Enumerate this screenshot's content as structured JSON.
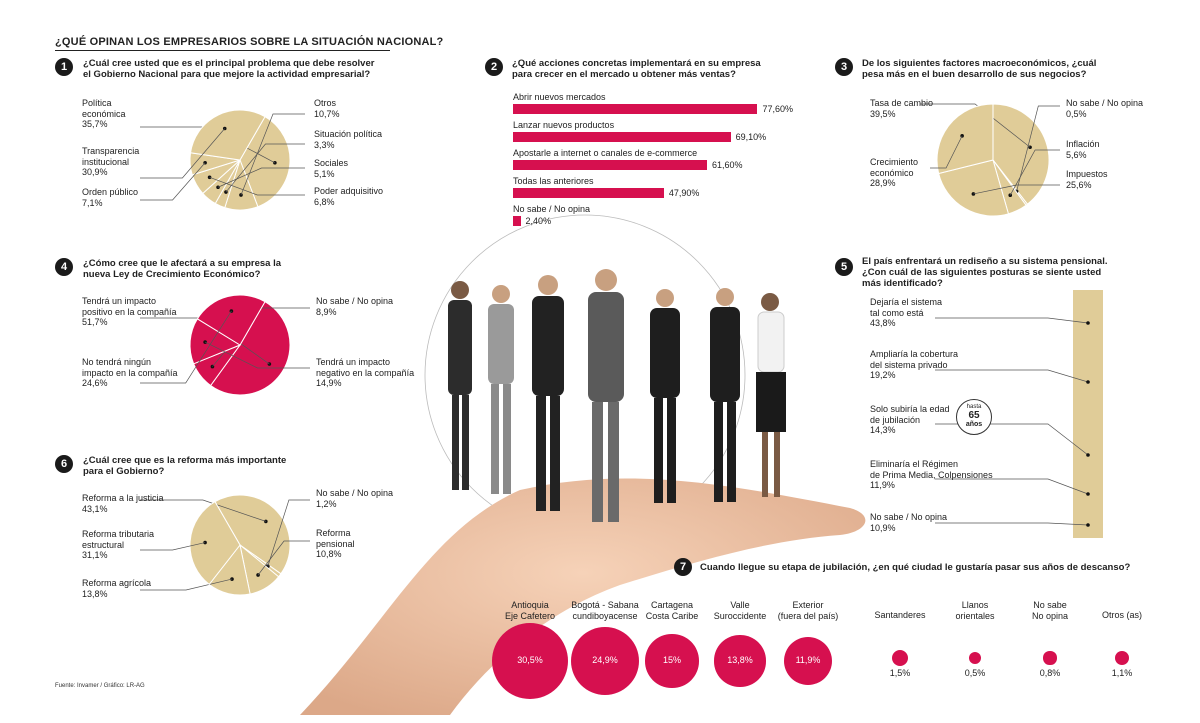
{
  "header": {
    "title": "¿QUÉ OPINAN LOS EMPRESARIOS SOBRE LA SITUACIÓN NACIONAL?"
  },
  "source": "Fuente: Invamer / Gráfico: LR-AG",
  "colors": {
    "tan": "#e0cc98",
    "magenta": "#d6104f",
    "dark": "#1a1a1a"
  },
  "chart_data": [
    {
      "id": "q1",
      "type": "pie",
      "number": "1",
      "title": "¿Cuál cree usted que es el principal problema que debe resolver el Gobierno Nacional para que mejore la actividad empresarial?",
      "title_lines": [
        "¿Cuál cree usted que es el principal problema que debe resolver",
        "el Gobierno Nacional para que mejore la actividad empresarial?"
      ],
      "slices": [
        {
          "label": "Política económica",
          "label_lines": [
            "Política",
            "económica"
          ],
          "value_text": "35,7%",
          "value": 35.7
        },
        {
          "label": "Otros",
          "label_lines": [
            "Otros"
          ],
          "value_text": "10,7%",
          "value": 10.7
        },
        {
          "label": "Situación política",
          "label_lines": [
            "Situación política"
          ],
          "value_text": "3,3%",
          "value": 3.3
        },
        {
          "label": "Sociales",
          "label_lines": [
            "Sociales"
          ],
          "value_text": "5,1%",
          "value": 5.1
        },
        {
          "label": "Poder adquisitivo",
          "label_lines": [
            "Poder adquisitivo"
          ],
          "value_text": "6,8%",
          "value": 6.8
        },
        {
          "label": "Orden público",
          "label_lines": [
            "Orden público"
          ],
          "value_text": "7,1%",
          "value": 7.1
        },
        {
          "label": "Transparencia institucional",
          "label_lines": [
            "Transparencia",
            "institucional"
          ],
          "value_text": "30,9%",
          "value": 30.9
        }
      ]
    },
    {
      "id": "q2",
      "type": "bar",
      "number": "2",
      "title": "¿Qué acciones concretas implementará en su empresa para crecer en el mercado u obtener más ventas?",
      "title_lines": [
        "¿Qué acciones concretas implementará en su empresa",
        "para crecer en el mercado u obtener más ventas?"
      ],
      "categories": [
        "Abrir nuevos mercados",
        "Lanzar nuevos productos",
        "Apostarle a internet o canales de e-commerce",
        "Todas las anteriores",
        "No sabe / No opina"
      ],
      "values": [
        77.6,
        69.1,
        61.6,
        47.9,
        2.4
      ],
      "value_texts": [
        "77,60%",
        "69,10%",
        "61,60%",
        "47,90%",
        "2,40%"
      ],
      "xlim": [
        0,
        100
      ]
    },
    {
      "id": "q3",
      "type": "pie",
      "number": "3",
      "title": "De los siguientes factores macroeconómicos, ¿cuál pesa más en el buen desarrollo de sus negocios?",
      "title_lines": [
        "De los siguientes factores macroeconómicos, ¿cuál",
        "pesa más en el buen desarrollo de sus negocios?"
      ],
      "slices": [
        {
          "label": "Tasa de cambio",
          "label_lines": [
            "Tasa de cambio"
          ],
          "value_text": "39,5%",
          "value": 39.5
        },
        {
          "label": "No sabe / No opina",
          "label_lines": [
            "No sabe / No opina"
          ],
          "value_text": "0,5%",
          "value": 0.5
        },
        {
          "label": "Inflación",
          "label_lines": [
            "Inflación"
          ],
          "value_text": "5,6%",
          "value": 5.6
        },
        {
          "label": "Impuestos",
          "label_lines": [
            "Impuestos"
          ],
          "value_text": "25,6%",
          "value": 25.6
        },
        {
          "label": "Crecimiento económico",
          "label_lines": [
            "Crecimiento",
            "económico"
          ],
          "value_text": "28,9%",
          "value": 28.9
        }
      ]
    },
    {
      "id": "q4",
      "type": "pie",
      "number": "4",
      "title": "¿Cómo cree que le afectará a su empresa la nueva Ley de Crecimiento Económico?",
      "title_lines": [
        "¿Cómo cree que le afectará a su empresa la",
        "nueva Ley de Crecimiento Económico?"
      ],
      "slices": [
        {
          "label": "Tendrá un impacto positivo en la compañía",
          "label_lines": [
            "Tendrá un impacto",
            "positivo en la compañía"
          ],
          "value_text": "51,7%",
          "value": 51.7
        },
        {
          "label": "No sabe / No opina",
          "label_lines": [
            "No sabe / No opina"
          ],
          "value_text": "8,9%",
          "value": 8.9
        },
        {
          "label": "Tendrá un impacto negativo en la compañía",
          "label_lines": [
            "Tendrá un impacto",
            "negativo en la compañía"
          ],
          "value_text": "14,9%",
          "value": 14.9
        },
        {
          "label": "No tendrá ningún impacto en la compañía",
          "label_lines": [
            "No tendrá ningún",
            "impacto en la compañía"
          ],
          "value_text": "24,6%",
          "value": 24.6
        }
      ]
    },
    {
      "id": "q5",
      "type": "bar",
      "number": "5",
      "title": "El país enfrentará un rediseño a su sistema pensional. ¿Con cuál de las siguientes posturas se siente usted más identificado?",
      "title_lines": [
        "El país enfrentará un rediseño a su sistema pensional.",
        "¿Con cuál de las siguientes posturas se siente usted",
        "más identificado?"
      ],
      "categories": [
        "Dejaría el sistema tal como está",
        "Ampliaría la cobertura del sistema privado",
        "Solo subiría la edad de jubilación",
        "Eliminaría el Régimen de Prima Media, Colpensiones",
        "No sabe / No opina"
      ],
      "category_lines": [
        [
          "Dejaría el sistema",
          "tal como está"
        ],
        [
          "Ampliaría la cobertura",
          "del sistema privado"
        ],
        [
          "Solo subiría la edad",
          "de jubilación"
        ],
        [
          "Eliminaría el Régimen",
          "de Prima Media, Colpensiones"
        ],
        [
          "No sabe / No opina"
        ]
      ],
      "values": [
        43.8,
        19.2,
        14.3,
        11.9,
        10.9
      ],
      "value_texts": [
        "43,8%",
        "19,2%",
        "14,3%",
        "11,9%",
        "10,9%"
      ],
      "badge": {
        "top": "hasta",
        "number": "65",
        "bottom": "años"
      }
    },
    {
      "id": "q6",
      "type": "pie",
      "number": "6",
      "title": "¿Cuál cree que es la reforma más importante para el Gobierno?",
      "title_lines": [
        "¿Cuál cree que es la reforma más importante",
        "para el Gobierno?"
      ],
      "slices": [
        {
          "label": "Reforma a la justicia",
          "label_lines": [
            "Reforma a la justicia"
          ],
          "value_text": "43,1%",
          "value": 43.1
        },
        {
          "label": "No sabe / No opina",
          "label_lines": [
            "No sabe / No opina"
          ],
          "value_text": "1,2%",
          "value": 1.2
        },
        {
          "label": "Reforma pensional",
          "label_lines": [
            "Reforma",
            "pensional"
          ],
          "value_text": "10,8%",
          "value": 10.8
        },
        {
          "label": "Reforma agrícola",
          "label_lines": [
            "Reforma agrícola"
          ],
          "value_text": "13,8%",
          "value": 13.8
        },
        {
          "label": "Reforma tributaria estructural",
          "label_lines": [
            "Reforma tributaria",
            "estructural"
          ],
          "value_text": "31,1%",
          "value": 31.1
        }
      ]
    },
    {
      "id": "q7",
      "type": "bubble",
      "number": "7",
      "title": "Cuando llegue su etapa de jubilación, ¿en qué ciudad le gustaría pasar sus años de descanso?",
      "categories": [
        {
          "label": "Antioquia Eje Cafetero",
          "label_lines": [
            "Antioquia",
            "Eje Cafetero"
          ],
          "value": 30.5,
          "value_text": "30,5%"
        },
        {
          "label": "Bogotá - Sabana cundiboyacense",
          "label_lines": [
            "Bogotá - Sabana",
            "cundiboyacense"
          ],
          "value": 24.9,
          "value_text": "24,9%"
        },
        {
          "label": "Cartagena Costa Caribe",
          "label_lines": [
            "Cartagena",
            "Costa Caribe"
          ],
          "value": 15,
          "value_text": "15%"
        },
        {
          "label": "Valle Suroccidente",
          "label_lines": [
            "Valle",
            "Suroccidente"
          ],
          "value": 13.8,
          "value_text": "13,8%"
        },
        {
          "label": "Exterior (fuera del país)",
          "label_lines": [
            "Exterior",
            "(fuera del país)"
          ],
          "value": 11.9,
          "value_text": "11,9%"
        },
        {
          "label": "Santanderes",
          "label_lines": [
            "Santanderes"
          ],
          "value": 1.5,
          "value_text": "1,5%"
        },
        {
          "label": "Llanos orientales",
          "label_lines": [
            "Llanos",
            "orientales"
          ],
          "value": 0.5,
          "value_text": "0,5%"
        },
        {
          "label": "No sabe No opina",
          "label_lines": [
            "No sabe",
            "No opina"
          ],
          "value": 0.8,
          "value_text": "0,8%"
        },
        {
          "label": "Otros (as)",
          "label_lines": [
            "Otros (as)"
          ],
          "value": 1.1,
          "value_text": "1,1%"
        }
      ]
    }
  ]
}
